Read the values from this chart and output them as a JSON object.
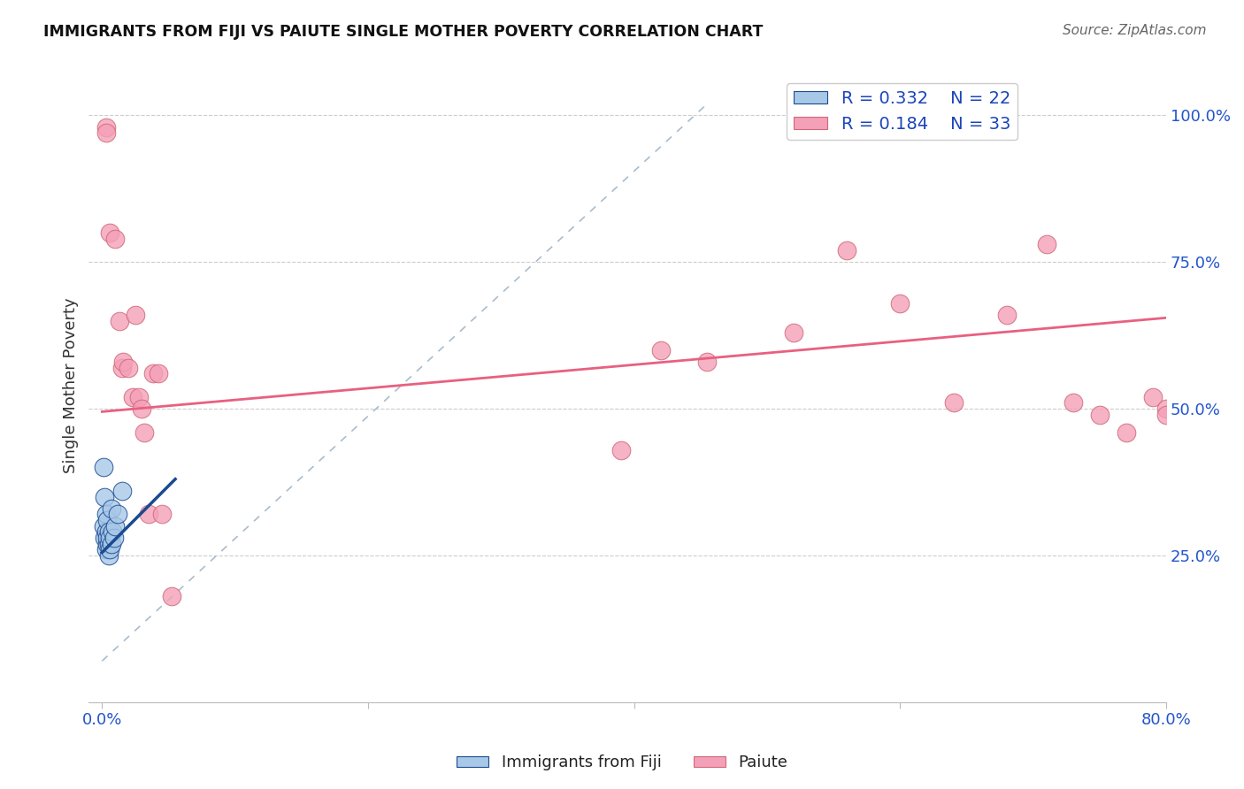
{
  "title": "IMMIGRANTS FROM FIJI VS PAIUTE SINGLE MOTHER POVERTY CORRELATION CHART",
  "source": "Source: ZipAtlas.com",
  "ylabel_label": "Single Mother Poverty",
  "legend_label1": "Immigrants from Fiji",
  "legend_label2": "Paiute",
  "R1": 0.332,
  "N1": 22,
  "R2": 0.184,
  "N2": 33,
  "xlim": [
    -0.01,
    0.8
  ],
  "ylim": [
    0.0,
    1.08
  ],
  "x_ticks": [
    0.0,
    0.2,
    0.4,
    0.6,
    0.8
  ],
  "x_tick_labels": [
    "0.0%",
    "",
    "",
    "",
    "80.0%"
  ],
  "y_ticks_right": [
    0.25,
    0.5,
    0.75,
    1.0
  ],
  "y_tick_labels_right": [
    "25.0%",
    "50.0%",
    "75.0%",
    "100.0%"
  ],
  "color_blue": "#a8c8e8",
  "color_pink": "#f4a0b8",
  "color_blue_line": "#1a4a90",
  "color_pink_line": "#e86080",
  "color_diag_line": "#aabccc",
  "blue_scatter_x": [
    0.001,
    0.001,
    0.002,
    0.002,
    0.003,
    0.003,
    0.003,
    0.004,
    0.004,
    0.004,
    0.005,
    0.005,
    0.005,
    0.006,
    0.006,
    0.007,
    0.007,
    0.008,
    0.009,
    0.01,
    0.012,
    0.015
  ],
  "blue_scatter_y": [
    0.3,
    0.4,
    0.28,
    0.35,
    0.26,
    0.29,
    0.32,
    0.27,
    0.28,
    0.31,
    0.25,
    0.27,
    0.29,
    0.26,
    0.28,
    0.27,
    0.33,
    0.29,
    0.28,
    0.3,
    0.32,
    0.36
  ],
  "pink_scatter_x": [
    0.003,
    0.003,
    0.006,
    0.01,
    0.013,
    0.015,
    0.016,
    0.02,
    0.023,
    0.025,
    0.028,
    0.03,
    0.032,
    0.035,
    0.038,
    0.042,
    0.045,
    0.052,
    0.39,
    0.42,
    0.455,
    0.52,
    0.56,
    0.6,
    0.64,
    0.68,
    0.71,
    0.73,
    0.75,
    0.77,
    0.79,
    0.8,
    0.8
  ],
  "pink_scatter_y": [
    0.98,
    0.97,
    0.8,
    0.79,
    0.65,
    0.57,
    0.58,
    0.57,
    0.52,
    0.66,
    0.52,
    0.5,
    0.46,
    0.32,
    0.56,
    0.56,
    0.32,
    0.18,
    0.43,
    0.6,
    0.58,
    0.63,
    0.77,
    0.68,
    0.51,
    0.66,
    0.78,
    0.51,
    0.49,
    0.46,
    0.52,
    0.5,
    0.49
  ],
  "blue_line_x": [
    0.0,
    0.055
  ],
  "blue_line_y": [
    0.255,
    0.38
  ],
  "pink_line_x": [
    0.0,
    0.8
  ],
  "pink_line_y": [
    0.495,
    0.655
  ],
  "diag_line_x": [
    0.0,
    0.455
  ],
  "diag_line_y": [
    0.07,
    1.02
  ],
  "background_color": "#ffffff",
  "grid_color": "#cccccc"
}
